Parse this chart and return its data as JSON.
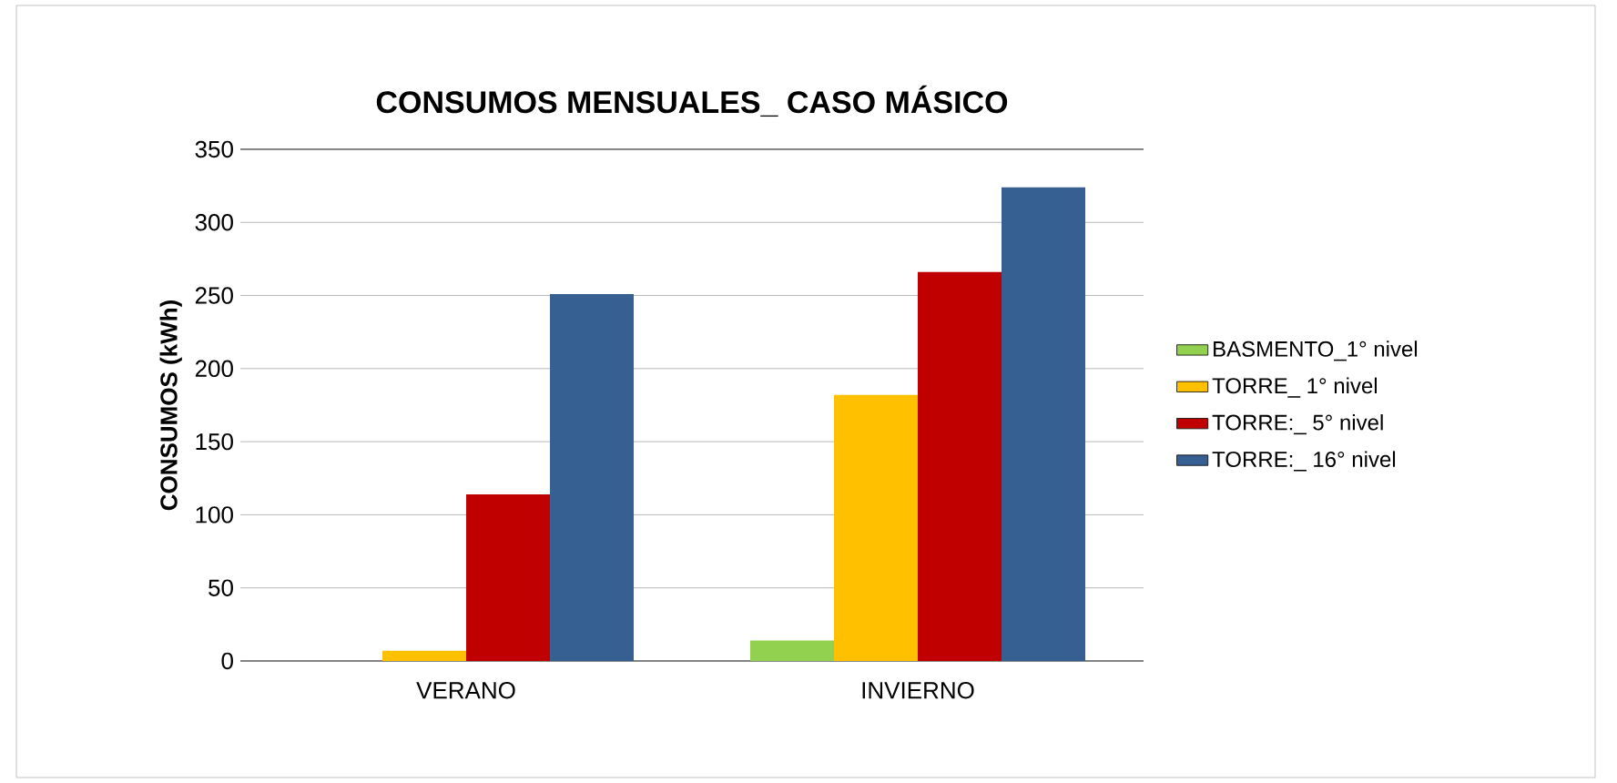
{
  "chart_data": {
    "type": "bar",
    "title": "CONSUMOS MENSUALES_ CASO MÁSICO",
    "ylabel": "CONSUMOS (kWh)",
    "categories": [
      "VERANO",
      "INVIERNO"
    ],
    "series": [
      {
        "name": "BASMENTO_1° nivel",
        "color": "#92d050",
        "values": [
          0,
          14
        ]
      },
      {
        "name": "TORRE_ 1° nivel",
        "color": "#ffc000",
        "values": [
          7,
          182
        ]
      },
      {
        "name": "TORRE:_ 5° nivel",
        "color": "#c00000",
        "values": [
          114,
          266
        ]
      },
      {
        "name": "TORRE:_ 16° nivel",
        "color": "#376092",
        "values": [
          251,
          324
        ]
      }
    ],
    "ylim": [
      0,
      350
    ],
    "yticks": [
      0,
      50,
      100,
      150,
      200,
      250,
      300,
      350
    ],
    "grid": "y",
    "legend": "right"
  }
}
